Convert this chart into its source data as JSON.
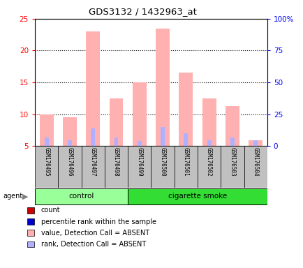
{
  "title": "GDS3132 / 1432963_at",
  "samples": [
    "GSM176495",
    "GSM176496",
    "GSM176497",
    "GSM176498",
    "GSM176499",
    "GSM176500",
    "GSM176501",
    "GSM176502",
    "GSM176503",
    "GSM176504"
  ],
  "value_absent": [
    10.0,
    9.5,
    23.0,
    12.5,
    15.0,
    23.5,
    16.5,
    12.5,
    11.3,
    5.9
  ],
  "rank_absent": [
    6.3,
    5.9,
    7.8,
    6.4,
    5.8,
    8.0,
    7.0,
    5.9,
    6.4,
    5.95
  ],
  "ylim_left": [
    5,
    25
  ],
  "ylim_right": [
    0,
    100
  ],
  "yticks_left": [
    5,
    10,
    15,
    20,
    25
  ],
  "yticks_right": [
    0,
    25,
    50,
    75,
    100
  ],
  "ytick_labels_right": [
    "0",
    "25",
    "50",
    "75",
    "100%"
  ],
  "color_value_absent": "#ffb0b0",
  "color_rank_absent": "#b0b0ff",
  "control_color": "#99ff99",
  "smoke_color": "#33dd33",
  "xtick_bg_color": "#c0c0c0",
  "legend_items": [
    {
      "color": "#cc0000",
      "label": "count"
    },
    {
      "color": "#0000cc",
      "label": "percentile rank within the sample"
    },
    {
      "color": "#ffb0b0",
      "label": "value, Detection Call = ABSENT"
    },
    {
      "color": "#b0b0ff",
      "label": "rank, Detection Call = ABSENT"
    }
  ]
}
